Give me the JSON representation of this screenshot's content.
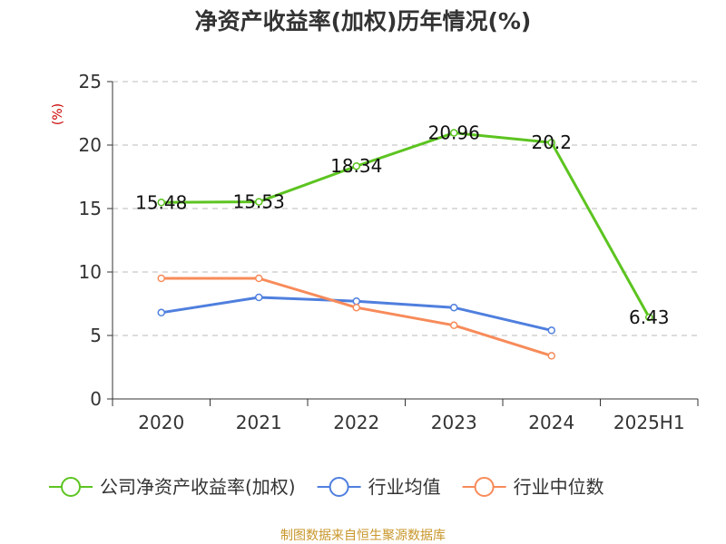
{
  "chart_data": {
    "type": "line",
    "title": "净资产收益率(加权)历年情况(%)",
    "unit_label": "(%)",
    "categories": [
      "2020",
      "2021",
      "2022",
      "2023",
      "2024",
      "2025H1"
    ],
    "ylim": [
      0,
      25
    ],
    "yticks": [
      0,
      5,
      10,
      15,
      20,
      25
    ],
    "grid": true,
    "legend_position": "bottom",
    "series": [
      {
        "name": "公司净资产收益率(加权)",
        "color": "#5cc420",
        "values": [
          15.48,
          15.53,
          18.34,
          20.96,
          20.2,
          6.43
        ],
        "labels": [
          "15.48",
          "15.53",
          "18.34",
          "20.96",
          "20.2",
          "6.43"
        ]
      },
      {
        "name": "行业均值",
        "color": "#4f7fde",
        "values": [
          6.8,
          8.0,
          7.7,
          7.2,
          5.4,
          null
        ]
      },
      {
        "name": "行业中位数",
        "color": "#f78b5a",
        "values": [
          9.5,
          9.5,
          7.2,
          5.8,
          3.4,
          null
        ]
      }
    ]
  },
  "source": "制图数据来自恒生聚源数据库"
}
